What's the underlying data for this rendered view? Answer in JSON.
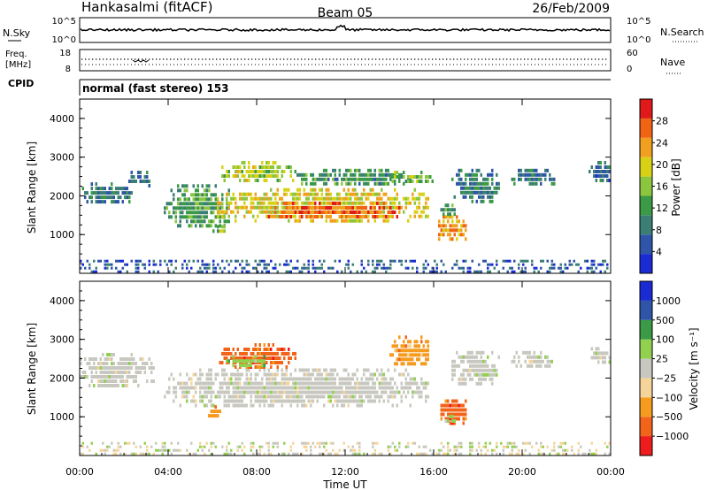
{
  "header": {
    "station": "Hankasalmi (fitACF)",
    "beam": "Beam 05",
    "date": "26/Feb/2009",
    "mode": "normal (fast stereo) 153"
  },
  "noise_panel": {
    "left_label": "N.Sky",
    "right_label": "N.Search",
    "ytick_top": "10^5",
    "ytick_bottom": "10^0"
  },
  "freq_panel": {
    "left_label_line1": "Freq.",
    "left_label_line2": "[MHz]",
    "ytick_top": "18",
    "ytick_bottom": "8",
    "right_label": "Nave",
    "right_tick_top": "60",
    "right_tick_bottom": "0",
    "cpid_label": "CPID"
  },
  "colors": {
    "power": [
      "#1a2bd4",
      "#2f55a8",
      "#3b7e74",
      "#3a9a46",
      "#8cc63f",
      "#d8d216",
      "#f0a01e",
      "#f06414",
      "#e01a1a"
    ],
    "velocity": [
      "#ee1c1c",
      "#f2641a",
      "#f59b1e",
      "#f5d49a",
      "#c8c8c0",
      "#92d050",
      "#3a9a46",
      "#2f55a8",
      "#1a2bd4"
    ]
  },
  "chart_data": [
    {
      "type": "heatmap",
      "title": "Power",
      "ylabel": "Slant Range [km]",
      "xlabel": "",
      "ylim": [
        0,
        4500
      ],
      "yticks": [
        "1000",
        "2000",
        "3000",
        "4000"
      ],
      "xlim": [
        0,
        24
      ],
      "colorbar_label": "Power [dB]",
      "colorbar_ticks": [
        "4",
        "8",
        "12",
        "16",
        "20",
        "24",
        "28"
      ],
      "colorbar_range": [
        0,
        32
      ],
      "regions": [
        {
          "t0": 0.0,
          "t1": 2.4,
          "r0": 1800,
          "r1": 2350,
          "level": 9
        },
        {
          "t0": 2.2,
          "t1": 3.4,
          "r0": 2300,
          "r1": 2650,
          "level": 8
        },
        {
          "t0": 3.8,
          "t1": 6.8,
          "r0": 1200,
          "r1": 2300,
          "level": 12
        },
        {
          "t0": 6.2,
          "t1": 15.8,
          "r0": 1400,
          "r1": 2200,
          "level": 20
        },
        {
          "t0": 8.5,
          "t1": 14.5,
          "r0": 1450,
          "r1": 1850,
          "level": 26
        },
        {
          "t0": 6.4,
          "t1": 9.8,
          "r0": 2400,
          "r1": 2900,
          "level": 17
        },
        {
          "t0": 9.8,
          "t1": 15.0,
          "r0": 2300,
          "r1": 2700,
          "level": 11
        },
        {
          "t0": 14.0,
          "t1": 16.0,
          "r0": 2350,
          "r1": 2650,
          "level": 15
        },
        {
          "t0": 5.9,
          "t1": 6.6,
          "r0": 1050,
          "r1": 1250,
          "level": 14
        },
        {
          "t0": 16.2,
          "t1": 17.5,
          "r0": 850,
          "r1": 1500,
          "level": 24
        },
        {
          "t0": 16.3,
          "t1": 17.0,
          "r0": 1550,
          "r1": 1800,
          "level": 12
        },
        {
          "t0": 16.8,
          "t1": 19.0,
          "r0": 1900,
          "r1": 2700,
          "level": 9
        },
        {
          "t0": 19.5,
          "t1": 21.5,
          "r0": 2300,
          "r1": 2700,
          "level": 8
        },
        {
          "t0": 23.0,
          "t1": 24.0,
          "r0": 2400,
          "r1": 2900,
          "level": 7
        },
        {
          "t0": 0.0,
          "t1": 24.0,
          "r0": 0,
          "r1": 350,
          "level": 6
        }
      ]
    },
    {
      "type": "heatmap",
      "title": "Velocity",
      "ylabel": "Slant Range [km]",
      "xlabel": "Time UT",
      "ylim": [
        0,
        4500
      ],
      "yticks": [
        "1000",
        "2000",
        "3000",
        "4000"
      ],
      "xlim": [
        0,
        24
      ],
      "xticks": [
        "00:00",
        "04:00",
        "08:00",
        "12:00",
        "16:00",
        "20:00",
        "00:00"
      ],
      "colorbar_label": "Velocity [m s⁻¹]",
      "colorbar_ticks": [
        "1000",
        "500",
        "100",
        "25",
        "−25",
        "−100",
        "−500",
        "−1000"
      ],
      "regions": [
        {
          "t0": 0.0,
          "t1": 3.4,
          "r0": 1800,
          "r1": 2650,
          "class": 4
        },
        {
          "t0": 3.8,
          "t1": 15.8,
          "r0": 1300,
          "r1": 2250,
          "class": 4
        },
        {
          "t0": 6.2,
          "t1": 9.8,
          "r0": 2300,
          "r1": 2900,
          "class": 1
        },
        {
          "t0": 6.5,
          "t1": 8.5,
          "r0": 2350,
          "r1": 2600,
          "class": 5
        },
        {
          "t0": 14.0,
          "t1": 15.8,
          "r0": 2300,
          "r1": 3100,
          "class": 2
        },
        {
          "t0": 5.8,
          "t1": 6.4,
          "r0": 1000,
          "r1": 1300,
          "class": 2
        },
        {
          "t0": 16.2,
          "t1": 17.5,
          "r0": 850,
          "r1": 1450,
          "class": 1
        },
        {
          "t0": 16.5,
          "t1": 17.0,
          "r0": 850,
          "r1": 1050,
          "class": 5
        },
        {
          "t0": 16.8,
          "t1": 19.0,
          "r0": 1900,
          "r1": 2700,
          "class": 4
        },
        {
          "t0": 19.5,
          "t1": 21.5,
          "r0": 2300,
          "r1": 2700,
          "class": 4
        },
        {
          "t0": 23.0,
          "t1": 24.0,
          "r0": 2400,
          "r1": 2800,
          "class": 4
        },
        {
          "t0": 0.0,
          "t1": 24.0,
          "r0": 0,
          "r1": 350,
          "class": 3
        }
      ]
    }
  ]
}
